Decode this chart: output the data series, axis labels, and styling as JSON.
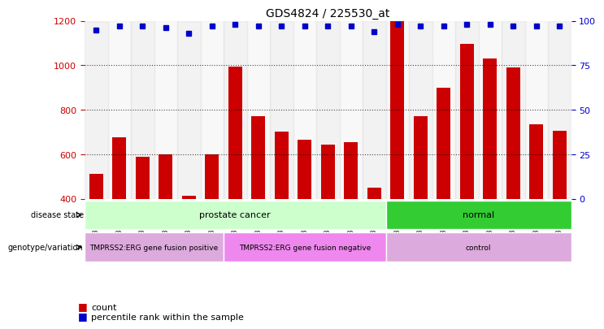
{
  "title": "GDS4824 / 225530_at",
  "samples": [
    "GSM1348940",
    "GSM1348941",
    "GSM1348942",
    "GSM1348943",
    "GSM1348944",
    "GSM1348945",
    "GSM1348933",
    "GSM1348934",
    "GSM1348935",
    "GSM1348936",
    "GSM1348937",
    "GSM1348938",
    "GSM1348939",
    "GSM1348946",
    "GSM1348947",
    "GSM1348948",
    "GSM1348949",
    "GSM1348950",
    "GSM1348951",
    "GSM1348952",
    "GSM1348953"
  ],
  "counts": [
    510,
    675,
    590,
    600,
    415,
    600,
    995,
    770,
    700,
    665,
    645,
    655,
    450,
    1200,
    770,
    900,
    1095,
    1030,
    990,
    735,
    705
  ],
  "percentiles": [
    95,
    97,
    97,
    96,
    93,
    97,
    98,
    97,
    97,
    97,
    97,
    97,
    94,
    98,
    97,
    97,
    98,
    98,
    97,
    97,
    97
  ],
  "bar_color": "#cc0000",
  "marker_color": "#0000cc",
  "ylim_left": [
    400,
    1200
  ],
  "ylim_right": [
    0,
    100
  ],
  "yticks_left": [
    400,
    600,
    800,
    1000,
    1200
  ],
  "yticks_right": [
    0,
    25,
    50,
    75,
    100
  ],
  "disease_state_groups": [
    {
      "label": "prostate cancer",
      "start": 0,
      "end": 12,
      "color": "#ccffcc"
    },
    {
      "label": "normal",
      "start": 13,
      "end": 20,
      "color": "#33cc33"
    }
  ],
  "genotype_groups": [
    {
      "label": "TMPRSS2:ERG gene fusion positive",
      "start": 0,
      "end": 5,
      "color": "#ddaadd"
    },
    {
      "label": "TMPRSS2:ERG gene fusion negative",
      "start": 6,
      "end": 12,
      "color": "#ee88ee"
    },
    {
      "label": "control",
      "start": 13,
      "end": 20,
      "color": "#ddaadd"
    }
  ],
  "legend_items": [
    {
      "label": "count",
      "color": "#cc0000",
      "marker": "s"
    },
    {
      "label": "percentile rank within the sample",
      "color": "#0000cc",
      "marker": "s"
    }
  ],
  "bg_color": "#ffffff",
  "grid_color": "#000000",
  "left_tick_color": "#cc0000",
  "right_tick_color": "#0000cc"
}
